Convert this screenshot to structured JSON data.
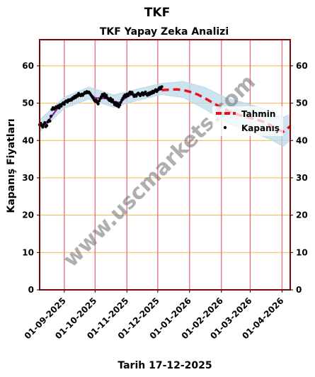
{
  "chart_data": {
    "type": "line",
    "title": "TKF",
    "subtitle": "TKF Yapay Zeka Analizi",
    "ylabel": "Kapanış Fiyatları",
    "xlabel": "Tarih 17-12-2025",
    "ylim": [
      0,
      67
    ],
    "xlim": [
      "2025-08-08",
      "2026-04-09"
    ],
    "y_ticks": [
      0,
      10,
      20,
      30,
      40,
      50,
      60
    ],
    "x_ticks": [
      "01-09-2025",
      "01-10-2025",
      "01-11-2025",
      "01-12-2025",
      "01-01-2026",
      "01-02-2026",
      "01-03-2026",
      "01-04-2026"
    ],
    "grid": true,
    "legend": "right",
    "series": [
      {
        "name": "Kapanış",
        "kind": "scatter",
        "color": "#000000",
        "points": [
          [
            "2025-08-08",
            44.2
          ],
          [
            "2025-08-09",
            44.6
          ],
          [
            "2025-08-10",
            44.0
          ],
          [
            "2025-08-11",
            43.6
          ],
          [
            "2025-08-12",
            44.3
          ],
          [
            "2025-08-13",
            44.8
          ],
          [
            "2025-08-14",
            43.7
          ],
          [
            "2025-08-15",
            44.0
          ],
          [
            "2025-08-16",
            45.0
          ],
          [
            "2025-08-17",
            45.4
          ],
          [
            "2025-08-18",
            45.2
          ],
          [
            "2025-08-19",
            46.5
          ],
          [
            "2025-08-20",
            48.3
          ],
          [
            "2025-08-21",
            48.8
          ],
          [
            "2025-08-22",
            48.4
          ],
          [
            "2025-08-23",
            48.6
          ],
          [
            "2025-08-24",
            49.0
          ],
          [
            "2025-08-25",
            48.9
          ],
          [
            "2025-08-26",
            49.3
          ],
          [
            "2025-08-27",
            48.7
          ],
          [
            "2025-08-28",
            49.6
          ],
          [
            "2025-08-29",
            49.2
          ],
          [
            "2025-08-30",
            49.8
          ],
          [
            "2025-08-31",
            50.1
          ],
          [
            "2025-09-01",
            49.7
          ],
          [
            "2025-09-02",
            50.4
          ],
          [
            "2025-09-03",
            50.6
          ],
          [
            "2025-09-04",
            50.3
          ],
          [
            "2025-09-05",
            50.9
          ],
          [
            "2025-09-06",
            50.7
          ],
          [
            "2025-09-07",
            51.0
          ],
          [
            "2025-09-08",
            50.8
          ],
          [
            "2025-09-09",
            51.4
          ],
          [
            "2025-09-10",
            51.2
          ],
          [
            "2025-09-11",
            51.8
          ],
          [
            "2025-09-12",
            51.5
          ],
          [
            "2025-09-13",
            52.1
          ],
          [
            "2025-09-14",
            51.9
          ],
          [
            "2025-09-15",
            52.6
          ],
          [
            "2025-09-16",
            52.2
          ],
          [
            "2025-09-17",
            52.0
          ],
          [
            "2025-09-18",
            52.4
          ],
          [
            "2025-09-19",
            52.1
          ],
          [
            "2025-09-20",
            52.5
          ],
          [
            "2025-09-21",
            52.9
          ],
          [
            "2025-09-22",
            52.7
          ],
          [
            "2025-09-23",
            53.1
          ],
          [
            "2025-09-24",
            52.8
          ],
          [
            "2025-09-25",
            53.0
          ],
          [
            "2025-09-26",
            52.6
          ],
          [
            "2025-09-27",
            52.2
          ],
          [
            "2025-09-28",
            51.8
          ],
          [
            "2025-09-29",
            51.4
          ],
          [
            "2025-09-30",
            50.9
          ],
          [
            "2025-10-01",
            50.5
          ],
          [
            "2025-10-02",
            50.8
          ],
          [
            "2025-10-03",
            50.2
          ],
          [
            "2025-10-04",
            49.8
          ],
          [
            "2025-10-05",
            50.6
          ],
          [
            "2025-10-06",
            51.2
          ],
          [
            "2025-10-07",
            51.7
          ],
          [
            "2025-10-08",
            52.3
          ],
          [
            "2025-10-09",
            51.9
          ],
          [
            "2025-10-10",
            52.5
          ],
          [
            "2025-10-11",
            51.6
          ],
          [
            "2025-10-12",
            52.1
          ],
          [
            "2025-10-13",
            51.4
          ],
          [
            "2025-10-14",
            51.0
          ],
          [
            "2025-10-15",
            50.7
          ],
          [
            "2025-10-16",
            51.3
          ],
          [
            "2025-10-17",
            50.4
          ],
          [
            "2025-10-18",
            50.9
          ],
          [
            "2025-10-19",
            50.2
          ],
          [
            "2025-10-20",
            49.6
          ],
          [
            "2025-10-21",
            50.1
          ],
          [
            "2025-10-22",
            49.3
          ],
          [
            "2025-10-23",
            49.8
          ],
          [
            "2025-10-24",
            49.0
          ],
          [
            "2025-10-25",
            49.5
          ],
          [
            "2025-10-26",
            50.2
          ],
          [
            "2025-10-27",
            50.8
          ],
          [
            "2025-10-28",
            51.3
          ],
          [
            "2025-10-29",
            51.8
          ],
          [
            "2025-10-30",
            52.2
          ],
          [
            "2025-10-31",
            51.7
          ],
          [
            "2025-11-01",
            52.4
          ],
          [
            "2025-11-02",
            52.0
          ],
          [
            "2025-11-03",
            52.6
          ],
          [
            "2025-11-04",
            53.0
          ],
          [
            "2025-11-05",
            52.5
          ],
          [
            "2025-11-06",
            52.9
          ],
          [
            "2025-11-07",
            52.3
          ],
          [
            "2025-11-08",
            51.8
          ],
          [
            "2025-11-09",
            52.2
          ],
          [
            "2025-11-10",
            51.9
          ],
          [
            "2025-11-11",
            52.4
          ],
          [
            "2025-11-12",
            52.7
          ],
          [
            "2025-11-13",
            52.3
          ],
          [
            "2025-11-14",
            52.0
          ],
          [
            "2025-11-15",
            52.5
          ],
          [
            "2025-11-16",
            52.8
          ],
          [
            "2025-11-17",
            52.2
          ],
          [
            "2025-11-18",
            52.6
          ],
          [
            "2025-11-19",
            53.0
          ],
          [
            "2025-11-20",
            52.4
          ],
          [
            "2025-11-21",
            52.1
          ],
          [
            "2025-11-22",
            52.7
          ],
          [
            "2025-11-23",
            52.3
          ],
          [
            "2025-11-24",
            52.9
          ],
          [
            "2025-11-25",
            52.6
          ],
          [
            "2025-11-26",
            53.2
          ],
          [
            "2025-11-27",
            52.8
          ],
          [
            "2025-11-28",
            53.3
          ],
          [
            "2025-11-29",
            53.6
          ],
          [
            "2025-11-30",
            53.1
          ],
          [
            "2025-12-01",
            53.5
          ],
          [
            "2025-12-02",
            53.9
          ],
          [
            "2025-12-03",
            54.2
          ],
          [
            "2025-12-04",
            53.8
          ],
          [
            "2025-12-05",
            54.4
          ]
        ]
      },
      {
        "name": "fit",
        "kind": "line",
        "color": "#8b1aa8",
        "points": [
          [
            "2025-08-08",
            43.9
          ],
          [
            "2025-08-14",
            44.3
          ],
          [
            "2025-08-20",
            46.6
          ],
          [
            "2025-08-26",
            48.8
          ],
          [
            "2025-09-01",
            50.1
          ],
          [
            "2025-09-07",
            51.0
          ],
          [
            "2025-09-13",
            51.9
          ],
          [
            "2025-09-19",
            52.5
          ],
          [
            "2025-09-25",
            52.7
          ],
          [
            "2025-10-01",
            51.4
          ],
          [
            "2025-10-07",
            51.3
          ],
          [
            "2025-10-13",
            51.2
          ],
          [
            "2025-10-19",
            50.5
          ],
          [
            "2025-10-25",
            50.1
          ],
          [
            "2025-10-31",
            51.5
          ],
          [
            "2025-11-06",
            52.4
          ],
          [
            "2025-11-12",
            52.3
          ],
          [
            "2025-11-18",
            52.4
          ],
          [
            "2025-11-24",
            52.6
          ],
          [
            "2025-11-30",
            53.2
          ],
          [
            "2025-12-05",
            53.8
          ]
        ]
      },
      {
        "name": "Tahmin",
        "kind": "dashed-line",
        "color": "#e8121b",
        "points": [
          [
            "2025-12-05",
            53.5
          ],
          [
            "2025-12-12",
            53.6
          ],
          [
            "2025-12-19",
            53.7
          ],
          [
            "2025-12-26",
            53.5
          ],
          [
            "2026-01-02",
            53.0
          ],
          [
            "2026-01-09",
            52.3
          ],
          [
            "2026-01-16",
            51.3
          ],
          [
            "2026-01-23",
            50.2
          ],
          [
            "2026-01-30",
            49.1
          ],
          [
            "2026-02-06",
            48.1
          ],
          [
            "2026-02-13",
            47.3
          ],
          [
            "2026-02-20",
            46.7
          ],
          [
            "2026-02-27",
            46.2
          ],
          [
            "2026-03-06",
            45.7
          ],
          [
            "2026-03-13",
            45.1
          ],
          [
            "2026-03-20",
            44.2
          ],
          [
            "2026-03-27",
            43.1
          ],
          [
            "2026-04-02",
            42.3
          ],
          [
            "2026-04-09",
            43.8
          ]
        ]
      }
    ],
    "band": [
      [
        "2025-08-08",
        45.5,
        42.3
      ],
      [
        "2025-09-01",
        51.6,
        48.6
      ],
      [
        "2025-09-25",
        54.3,
        51.1
      ],
      [
        "2025-10-19",
        52.2,
        48.9
      ],
      [
        "2025-11-12",
        53.8,
        50.8
      ],
      [
        "2025-12-05",
        55.3,
        52.3
      ],
      [
        "2025-12-26",
        55.8,
        51.5
      ],
      [
        "2026-01-16",
        54.2,
        48.4
      ],
      [
        "2026-02-06",
        51.4,
        44.8
      ],
      [
        "2026-02-27",
        49.8,
        42.6
      ],
      [
        "2026-03-20",
        48.0,
        40.4
      ],
      [
        "2026-04-02",
        46.2,
        38.4
      ],
      [
        "2026-04-09",
        47.0,
        40.0
      ]
    ],
    "colors": {
      "frame": "#7a0a0a",
      "vertical_grid": "#e07a86",
      "horizontal_grid": "#f5c26b",
      "band": "#bcd9ea"
    }
  },
  "legend": {
    "forecast_label": "Tahmin",
    "close_label": "Kapanış"
  },
  "watermark": "www.uscmarkets.com"
}
